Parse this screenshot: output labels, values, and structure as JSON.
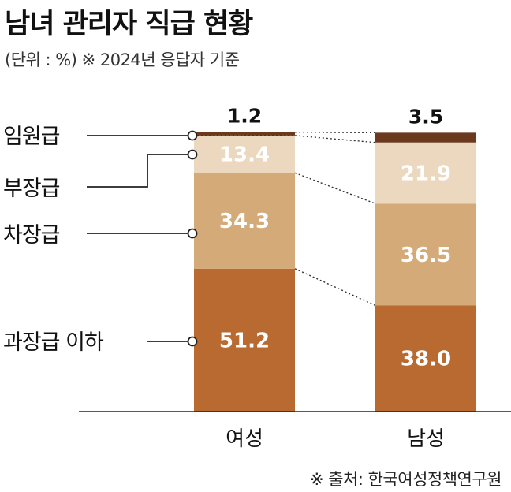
{
  "title": "남녀 관리자 직급 현황",
  "subtitle": "(단위 : %) ※ 2024년 응답자 기준",
  "source": "※ 출처: 한국여성정책연구원",
  "chart_data": {
    "type": "bar",
    "stacked": true,
    "categories": [
      "여성",
      "남성"
    ],
    "series": [
      {
        "name": "과장급 이하",
        "values": [
          51.2,
          38.0
        ],
        "labels": [
          "51.2",
          "38.0"
        ],
        "color": "#B86A30"
      },
      {
        "name": "차장급",
        "values": [
          34.3,
          36.5
        ],
        "labels": [
          "34.3",
          "36.5"
        ],
        "color": "#D4AA78"
      },
      {
        "name": "부장급",
        "values": [
          13.4,
          21.9
        ],
        "labels": [
          "13.4",
          "21.9"
        ],
        "color": "#EBD8BF"
      },
      {
        "name": "임원급",
        "values": [
          1.2,
          3.5
        ],
        "labels": [
          "1.2",
          "3.5"
        ],
        "color": "#6B3A1E"
      }
    ],
    "ylim": [
      0,
      100
    ],
    "legend": "left, with leader lines"
  }
}
